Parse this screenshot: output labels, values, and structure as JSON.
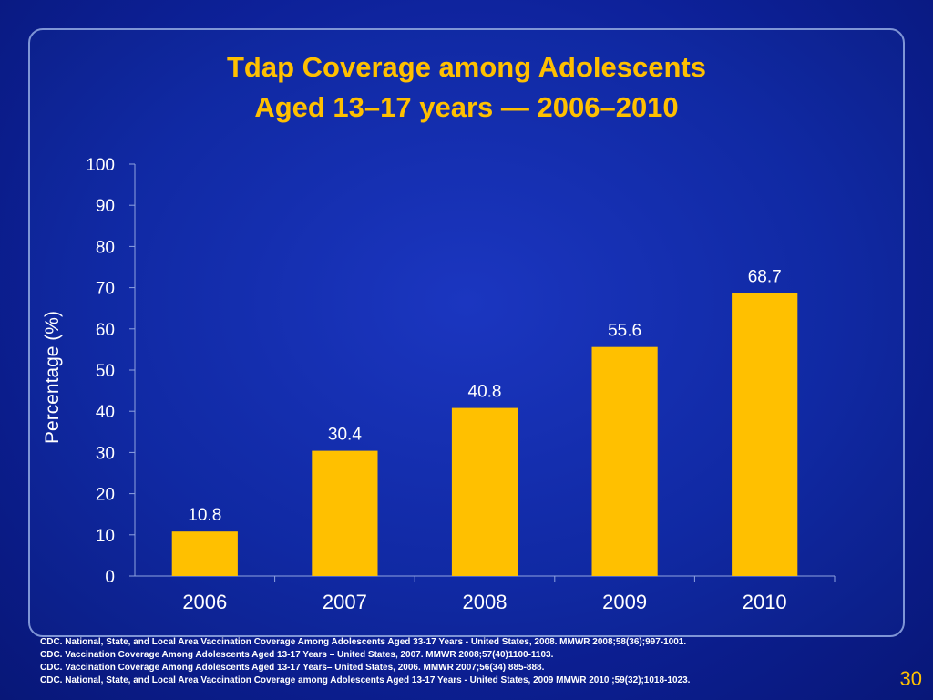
{
  "slide": {
    "title_line1": "Tdap Coverage among Adolescents",
    "title_line2": "Aged 13–17 years — 2006–2010",
    "references": [
      "CDC. National, State, and Local Area Vaccination Coverage Among Adolescents Aged 33-17 Years - United States, 2008. MMWR 2008;58(36);997-1001.",
      "CDC. Vaccination Coverage Among Adolescents Aged 13-17 Years – United States, 2007. MMWR 2008;57(40)1100-1103.",
      "CDC. Vaccination Coverage Among Adolescents Aged 13-17 Years– United States, 2006. MMWR 2007;56(34) 885-888.",
      "CDC. National, State, and Local Area Vaccination Coverage among Adolescents Aged 13-17 Years  - United States, 2009 MMWR 2010 ;59(32);1018-1023."
    ],
    "page_number": "30"
  },
  "colors": {
    "background": "#0d2199",
    "title": "#ffc000",
    "bar": "#ffc000",
    "text": "#ffffff"
  },
  "chart_data": {
    "type": "bar",
    "categories": [
      "2006",
      "2007",
      "2008",
      "2009",
      "2010"
    ],
    "values": [
      10.8,
      30.4,
      40.8,
      55.6,
      68.7
    ],
    "data_labels": [
      "10.8",
      "30.4",
      "40.8",
      "55.6",
      "68.7"
    ],
    "title": "Tdap Coverage among Adolescents Aged 13–17 years — 2006–2010",
    "xlabel": "",
    "ylabel": "Percentage (%)",
    "ylim": [
      0,
      100
    ],
    "yticks": [
      "0",
      "10",
      "20",
      "30",
      "40",
      "50",
      "60",
      "70",
      "80",
      "90",
      "100"
    ],
    "grid": false,
    "legend": "none"
  }
}
